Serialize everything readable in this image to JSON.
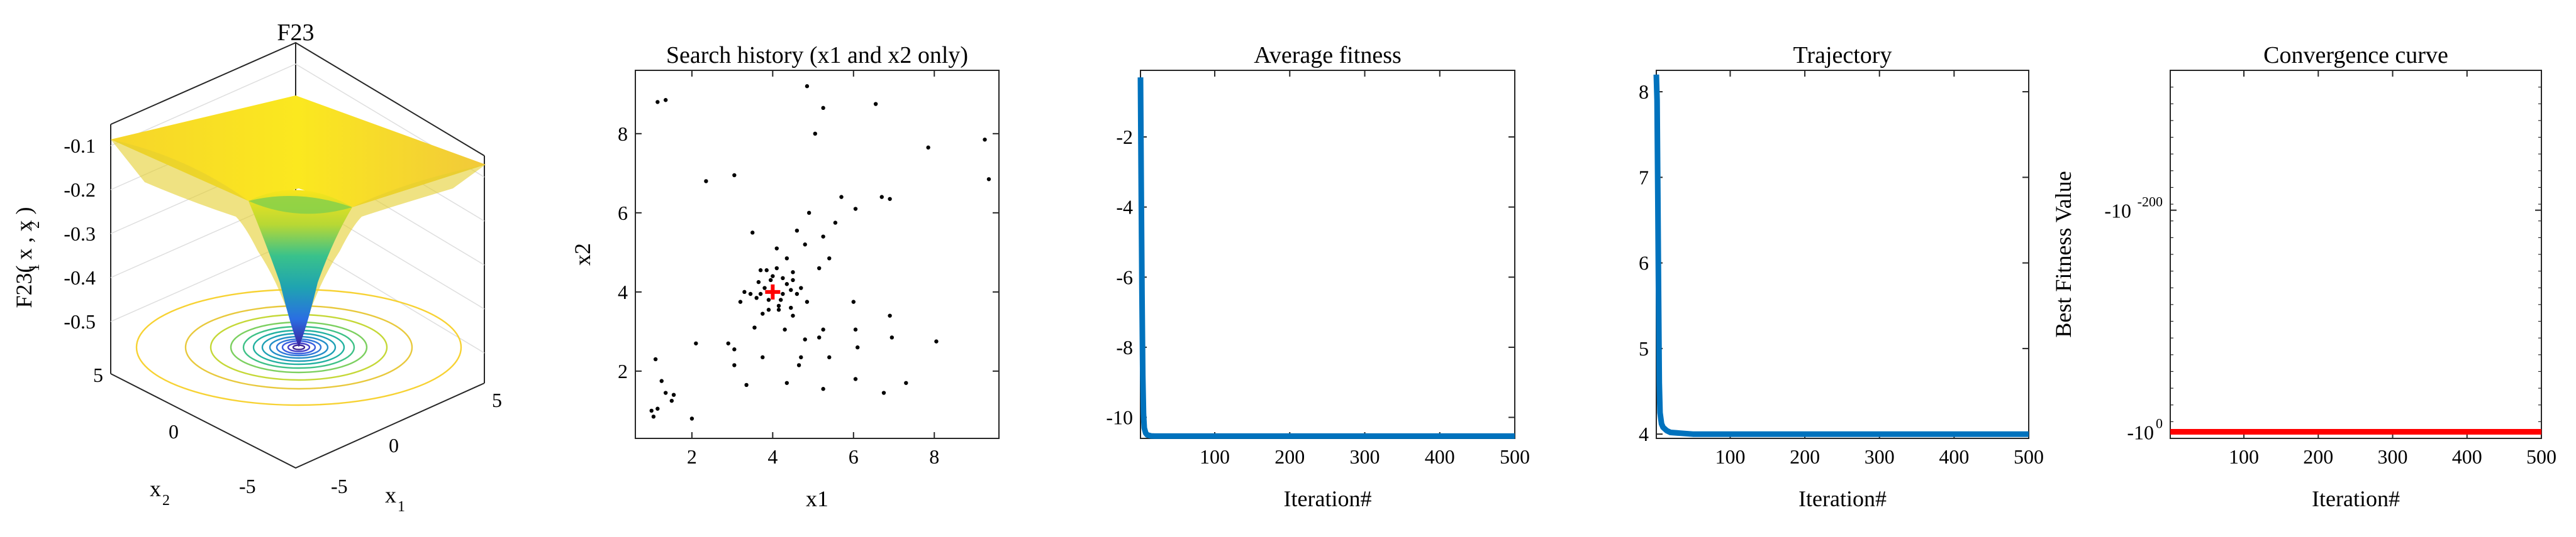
{
  "colors": {
    "trace": "#0072bd",
    "conv": "#ff0000",
    "hist_point": "#000000",
    "best_point": "#ff0000"
  },
  "panel1": {
    "title": "F23",
    "zlabel": "F23( x  , x  )",
    "zlabel_sub1": "1",
    "zlabel_sub2": "2",
    "x1label": "x",
    "x1label_sub": "1",
    "x2label": "x",
    "x2label_sub": "2",
    "zticks": [
      "-0.1",
      "-0.2",
      "-0.3",
      "-0.4",
      "-0.5"
    ],
    "x1ticks": [
      "5",
      "0",
      "-5"
    ],
    "x2ticks": [
      "5",
      "0",
      "-5"
    ]
  },
  "chart_data": [
    {
      "type": "surface",
      "title": "F23",
      "zlabel": "F23( x1 , x2 )",
      "xlabel": "x1",
      "ylabel": "x2",
      "xlim": [
        -5,
        5
      ],
      "ylim": [
        -5,
        5
      ],
      "zlim": [
        -0.55,
        -0.05
      ],
      "zticks": [
        -0.1,
        -0.2,
        -0.3,
        -0.4,
        -0.5
      ],
      "minimum": {
        "x1": 0,
        "x2": 0,
        "z": -0.54
      },
      "grid": true
    },
    {
      "type": "scatter",
      "title": "Search history (x1 and x2 only)",
      "xlabel": "x1",
      "ylabel": "x2",
      "xlim": [
        0.6,
        9.6
      ],
      "ylim": [
        0.3,
        9.6
      ],
      "xticks": [
        2,
        4,
        6,
        8
      ],
      "yticks": [
        2,
        4,
        6,
        8
      ],
      "best": {
        "x": 4.0,
        "y": 4.0
      },
      "points": [
        [
          1.15,
          8.8
        ],
        [
          1.35,
          8.85
        ],
        [
          4.85,
          9.2
        ],
        [
          5.25,
          8.65
        ],
        [
          6.55,
          8.75
        ],
        [
          5.05,
          8.0
        ],
        [
          7.85,
          7.65
        ],
        [
          9.25,
          7.85
        ],
        [
          2.35,
          6.8
        ],
        [
          3.05,
          6.95
        ],
        [
          9.35,
          6.85
        ],
        [
          5.7,
          6.4
        ],
        [
          6.7,
          6.4
        ],
        [
          6.9,
          6.35
        ],
        [
          4.9,
          6.0
        ],
        [
          6.05,
          6.1
        ],
        [
          4.6,
          5.55
        ],
        [
          5.55,
          5.75
        ],
        [
          5.25,
          5.4
        ],
        [
          3.5,
          5.5
        ],
        [
          4.1,
          5.1
        ],
        [
          4.8,
          5.2
        ],
        [
          5.15,
          4.6
        ],
        [
          4.35,
          4.85
        ],
        [
          3.7,
          4.55
        ],
        [
          5.4,
          4.85
        ],
        [
          4.5,
          4.3
        ],
        [
          3.2,
          3.75
        ],
        [
          3.9,
          3.55
        ],
        [
          3.75,
          3.45
        ],
        [
          3.6,
          3.85
        ],
        [
          4.15,
          3.65
        ],
        [
          3.55,
          3.1
        ],
        [
          4.5,
          3.4
        ],
        [
          4.3,
          3.05
        ],
        [
          4.8,
          2.8
        ],
        [
          5.15,
          2.85
        ],
        [
          6.0,
          3.75
        ],
        [
          6.05,
          3.05
        ],
        [
          5.25,
          3.05
        ],
        [
          6.9,
          3.4
        ],
        [
          6.95,
          2.85
        ],
        [
          6.1,
          2.6
        ],
        [
          2.9,
          2.7
        ],
        [
          3.05,
          2.55
        ],
        [
          3.75,
          2.35
        ],
        [
          4.7,
          2.35
        ],
        [
          4.65,
          2.15
        ],
        [
          1.1,
          2.3
        ],
        [
          2.1,
          2.7
        ],
        [
          3.05,
          2.15
        ],
        [
          8.05,
          2.75
        ],
        [
          6.05,
          1.8
        ],
        [
          5.25,
          1.55
        ],
        [
          6.75,
          1.45
        ],
        [
          1.35,
          1.45
        ],
        [
          1.5,
          1.25
        ],
        [
          1.55,
          1.4
        ],
        [
          1.0,
          1.0
        ],
        [
          1.05,
          0.85
        ],
        [
          1.15,
          1.05
        ],
        [
          3.35,
          1.65
        ],
        [
          4.35,
          1.7
        ],
        [
          7.3,
          1.7
        ],
        [
          2.0,
          0.8
        ],
        [
          1.25,
          1.75
        ],
        [
          5.4,
          2.35
        ],
        [
          4.0,
          4.4
        ],
        [
          4.25,
          3.95
        ],
        [
          3.8,
          4.1
        ],
        [
          4.45,
          4.05
        ],
        [
          3.9,
          3.8
        ],
        [
          4.2,
          3.8
        ],
        [
          3.7,
          3.95
        ],
        [
          4.35,
          4.2
        ],
        [
          3.65,
          4.25
        ],
        [
          4.6,
          3.95
        ],
        [
          4.1,
          4.6
        ],
        [
          3.95,
          4.3
        ],
        [
          4.15,
          3.55
        ],
        [
          4.45,
          3.6
        ],
        [
          3.45,
          3.95
        ],
        [
          4.7,
          4.1
        ],
        [
          4.5,
          4.5
        ],
        [
          3.85,
          4.55
        ],
        [
          4.25,
          4.35
        ],
        [
          4.85,
          3.75
        ],
        [
          3.3,
          4.0
        ]
      ]
    },
    {
      "type": "line",
      "title": "Average fitness",
      "xlabel": "Iteration#",
      "ylabel": "",
      "xlim": [
        1,
        500
      ],
      "ylim": [
        -10.6,
        -0.1
      ],
      "xticks": [
        100,
        200,
        300,
        400,
        500
      ],
      "yticks": [
        -2,
        -4,
        -6,
        -8,
        -10
      ],
      "x": [
        1,
        2,
        3,
        4,
        5,
        6,
        8,
        10,
        15,
        20,
        30,
        50,
        100,
        200,
        300,
        400,
        500
      ],
      "y": [
        -0.3,
        -3.5,
        -6.5,
        -8.8,
        -9.9,
        -10.3,
        -10.45,
        -10.5,
        -10.53,
        -10.536,
        -10.536,
        -10.536,
        -10.536,
        -10.536,
        -10.536,
        -10.536,
        -10.536
      ]
    },
    {
      "type": "line",
      "title": "Trajectory",
      "xlabel": "Iteration#",
      "ylabel": "",
      "xlim": [
        1,
        500
      ],
      "ylim": [
        3.95,
        8.25
      ],
      "xticks": [
        100,
        200,
        300,
        400,
        500
      ],
      "yticks": [
        4,
        5,
        6,
        7,
        8
      ],
      "x": [
        1,
        2,
        3,
        4,
        5,
        6,
        8,
        10,
        15,
        20,
        50,
        100,
        200,
        300,
        400,
        500
      ],
      "y": [
        8.2,
        7.9,
        6.8,
        5.6,
        4.6,
        4.25,
        4.12,
        4.08,
        4.04,
        4.02,
        4.0,
        4.0,
        4.0,
        4.0,
        4.0,
        4.0
      ]
    },
    {
      "type": "line",
      "title": "Convergence curve",
      "xlabel": "Iteration#",
      "ylabel": "Best Fitness Value",
      "xlim": [
        1,
        500
      ],
      "xticks": [
        100,
        200,
        300,
        400,
        500
      ],
      "yscale": "log",
      "yticklabels": [
        "-10",
        "-10"
      ],
      "yticklabel_exponents": [
        "-200",
        "0"
      ],
      "x": [
        1,
        500
      ],
      "y": [
        -10.5364,
        -10.5364
      ]
    }
  ]
}
